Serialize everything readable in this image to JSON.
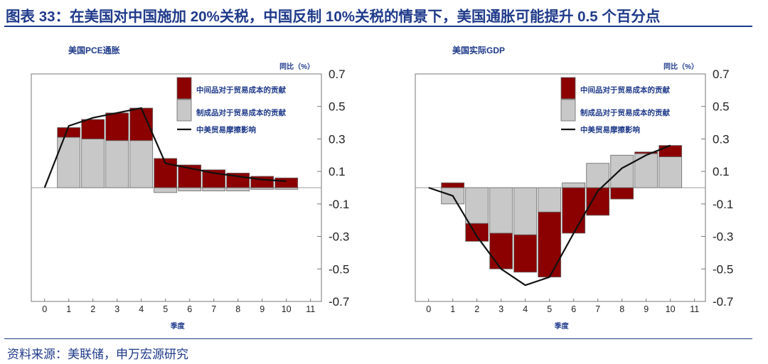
{
  "figure_title": "图表 33：在美国对中国施加 20%关税，中国反制 10%关税的情景下，美国通胀可能提升 0.5 个百分点",
  "source": "资料来源：美联储，申万宏源研究",
  "colors": {
    "title": "#1f3a8a",
    "intermediate": "#8b0000",
    "final": "#c8c8c8",
    "line": "#111111"
  },
  "chart_data": [
    {
      "type": "bar",
      "title": "美国PCE通胀",
      "ylabel": "同比（%）",
      "xlabel": "季度",
      "x": [
        0,
        1,
        2,
        3,
        4,
        5,
        6,
        7,
        8,
        9,
        10,
        11
      ],
      "ylim": [
        -0.7,
        0.7
      ],
      "yticks": [
        0.7,
        0.5,
        0.3,
        0.1,
        -0.1,
        -0.3,
        -0.5,
        -0.7
      ],
      "legend": [
        "中间品对于贸易成本的贡献",
        "制成品对于贸易成本的贡献",
        "中美贸易摩擦影响"
      ],
      "series": [
        {
          "name": "中间品对于贸易成本的贡献",
          "x": [
            1,
            2,
            3,
            4,
            5,
            6,
            7,
            8,
            9,
            10
          ],
          "values": [
            0.06,
            0.12,
            0.17,
            0.2,
            0.18,
            0.14,
            0.11,
            0.09,
            0.07,
            0.06
          ]
        },
        {
          "name": "制成品对于贸易成本的贡献",
          "x": [
            1,
            2,
            3,
            4,
            5,
            6,
            7,
            8,
            9,
            10
          ],
          "values": [
            0.31,
            0.3,
            0.29,
            0.29,
            -0.03,
            -0.02,
            -0.02,
            -0.02,
            -0.01,
            -0.01
          ]
        },
        {
          "name": "中美贸易摩擦影响",
          "x": [
            0,
            1,
            2,
            3,
            4,
            5,
            6,
            7,
            8,
            9,
            10
          ],
          "values": [
            0.0,
            0.38,
            0.43,
            0.46,
            0.49,
            0.15,
            0.12,
            0.09,
            0.07,
            0.05,
            0.04
          ]
        }
      ]
    },
    {
      "type": "bar",
      "title": "美国实际GDP",
      "ylabel": "同比（%）",
      "xlabel": "季度",
      "x": [
        0,
        1,
        2,
        3,
        4,
        5,
        6,
        7,
        8,
        9,
        10,
        11
      ],
      "ylim": [
        -0.7,
        0.7
      ],
      "yticks": [
        0.7,
        0.5,
        0.3,
        0.1,
        -0.1,
        -0.3,
        -0.5,
        -0.7
      ],
      "legend": [
        "中间品对于贸易成本的贡献",
        "制成品对于贸易成本的贡献",
        "中美贸易摩擦影响"
      ],
      "series": [
        {
          "name": "中间品对于贸易成本的贡献",
          "x": [
            1,
            2,
            3,
            4,
            5,
            6,
            7,
            8,
            9,
            10
          ],
          "values": [
            0.03,
            -0.11,
            -0.22,
            -0.23,
            -0.4,
            -0.28,
            -0.17,
            -0.07,
            0.01,
            0.07
          ]
        },
        {
          "name": "制成品对于贸易成本的贡献",
          "x": [
            1,
            2,
            3,
            4,
            5,
            6,
            7,
            8,
            9,
            10
          ],
          "values": [
            -0.1,
            -0.22,
            -0.28,
            -0.29,
            -0.15,
            0.03,
            0.15,
            0.2,
            0.21,
            0.19
          ]
        },
        {
          "name": "中美贸易摩擦影响",
          "x": [
            0,
            1,
            2,
            3,
            4,
            5,
            6,
            7,
            8,
            9,
            10
          ],
          "values": [
            0.0,
            -0.05,
            -0.3,
            -0.5,
            -0.6,
            -0.55,
            -0.28,
            -0.02,
            0.12,
            0.2,
            0.26
          ]
        }
      ]
    }
  ]
}
